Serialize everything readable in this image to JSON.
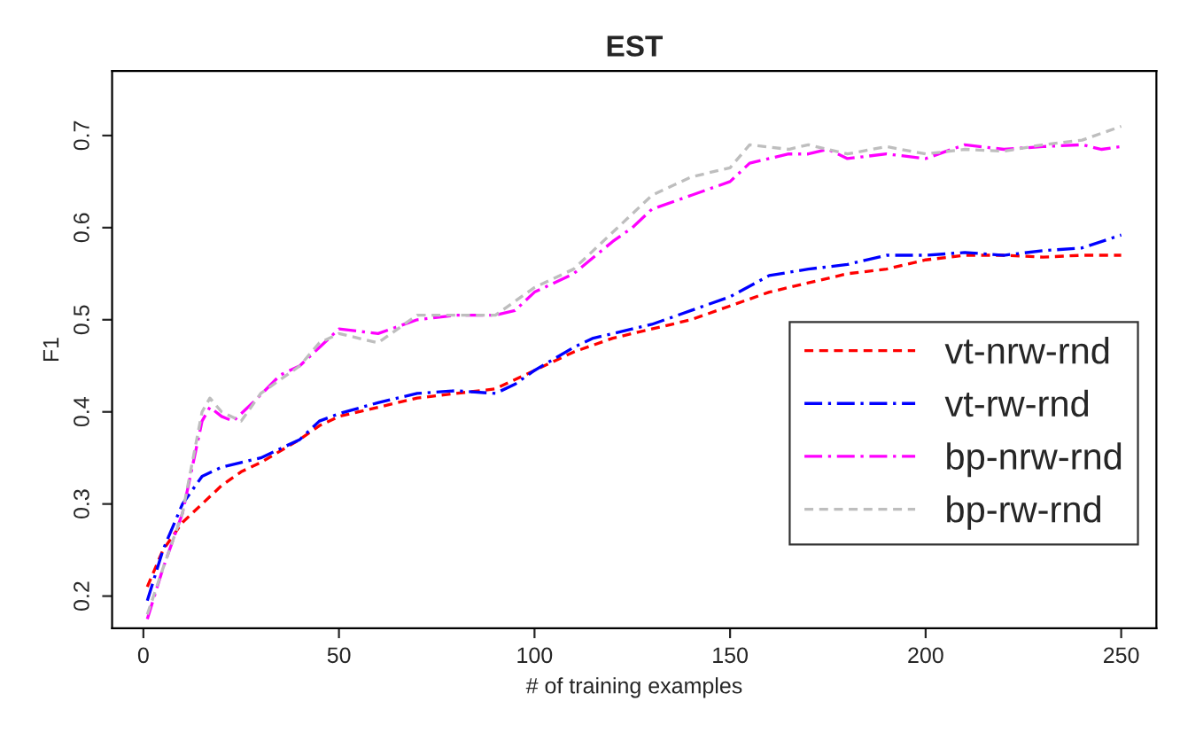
{
  "chart_data": {
    "type": "line",
    "title": "EST",
    "xlabel": "# of training examples",
    "ylabel": "F1",
    "xlim": [
      -8,
      259
    ],
    "xticks": [
      0,
      50,
      100,
      150,
      200,
      250
    ],
    "ylim": [
      0.165,
      0.77
    ],
    "yticks": [
      0.2,
      0.3,
      0.4,
      0.5,
      0.6,
      0.7
    ],
    "grid": false,
    "legend": "right",
    "marker": "none",
    "series": [
      {
        "name": "vt-nrw-rnd",
        "color": "#ff0000",
        "line_style": "dashed",
        "x": [
          1,
          5,
          10,
          15,
          20,
          25,
          30,
          40,
          45,
          50,
          60,
          70,
          80,
          90,
          100,
          110,
          120,
          130,
          140,
          150,
          160,
          170,
          180,
          190,
          200,
          210,
          220,
          230,
          240,
          250
        ],
        "values": [
          0.21,
          0.25,
          0.28,
          0.3,
          0.32,
          0.335,
          0.345,
          0.37,
          0.385,
          0.395,
          0.405,
          0.415,
          0.42,
          0.425,
          0.445,
          0.465,
          0.48,
          0.49,
          0.5,
          0.515,
          0.53,
          0.54,
          0.55,
          0.555,
          0.565,
          0.57,
          0.57,
          0.568,
          0.57,
          0.57
        ]
      },
      {
        "name": "vt-rw-rnd",
        "color": "#0000ff",
        "line_style": "dashdot",
        "x": [
          1,
          5,
          10,
          15,
          20,
          25,
          30,
          40,
          45,
          50,
          60,
          70,
          80,
          90,
          95,
          100,
          110,
          115,
          120,
          130,
          140,
          150,
          160,
          170,
          180,
          190,
          200,
          210,
          220,
          230,
          240,
          250
        ],
        "values": [
          0.195,
          0.25,
          0.3,
          0.33,
          0.34,
          0.345,
          0.35,
          0.37,
          0.39,
          0.398,
          0.41,
          0.42,
          0.423,
          0.42,
          0.43,
          0.445,
          0.47,
          0.48,
          0.485,
          0.495,
          0.51,
          0.525,
          0.548,
          0.555,
          0.56,
          0.57,
          0.57,
          0.573,
          0.57,
          0.575,
          0.578,
          0.592
        ]
      },
      {
        "name": "bp-nrw-rnd",
        "color": "#ff00ff",
        "line_style": "dashdot",
        "x": [
          1,
          5,
          10,
          15,
          17,
          20,
          23,
          28,
          35,
          40,
          45,
          50,
          60,
          70,
          80,
          90,
          95,
          100,
          110,
          120,
          125,
          130,
          140,
          150,
          155,
          165,
          170,
          175,
          180,
          190,
          200,
          210,
          220,
          230,
          240,
          245,
          250
        ],
        "values": [
          0.175,
          0.23,
          0.29,
          0.39,
          0.405,
          0.395,
          0.39,
          0.41,
          0.44,
          0.45,
          0.47,
          0.49,
          0.485,
          0.5,
          0.505,
          0.505,
          0.51,
          0.53,
          0.55,
          0.585,
          0.6,
          0.62,
          0.635,
          0.65,
          0.67,
          0.68,
          0.68,
          0.685,
          0.675,
          0.68,
          0.675,
          0.69,
          0.685,
          0.688,
          0.69,
          0.685,
          0.688
        ]
      },
      {
        "name": "bp-rw-rnd",
        "color": "#bebebe",
        "line_style": "dashed",
        "x": [
          1,
          5,
          10,
          15,
          17,
          20,
          25,
          30,
          40,
          45,
          50,
          55,
          60,
          70,
          80,
          90,
          100,
          110,
          120,
          130,
          140,
          150,
          155,
          165,
          170,
          180,
          190,
          200,
          210,
          220,
          230,
          240,
          250
        ],
        "values": [
          0.18,
          0.23,
          0.29,
          0.4,
          0.415,
          0.4,
          0.39,
          0.42,
          0.45,
          0.475,
          0.485,
          0.48,
          0.475,
          0.505,
          0.505,
          0.505,
          0.535,
          0.555,
          0.595,
          0.635,
          0.655,
          0.665,
          0.69,
          0.685,
          0.69,
          0.68,
          0.688,
          0.68,
          0.685,
          0.683,
          0.69,
          0.695,
          0.71
        ]
      }
    ]
  }
}
